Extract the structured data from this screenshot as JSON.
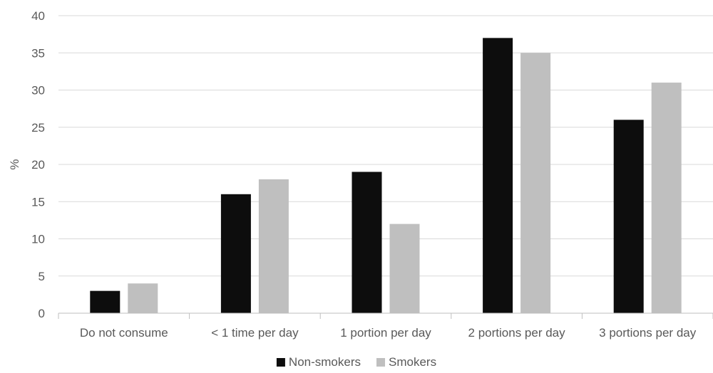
{
  "chart_data": {
    "type": "bar",
    "title": "",
    "xlabel": "",
    "ylabel": "%",
    "ylim": [
      0,
      40
    ],
    "yticks": [
      0,
      5,
      10,
      15,
      20,
      25,
      30,
      35,
      40
    ],
    "grid": true,
    "legend_position": "bottom",
    "categories": [
      "Do not consume",
      "< 1 time per day",
      "1 portion per day",
      "2 portions per day",
      "3 portions per day"
    ],
    "series": [
      {
        "name": "Non-smokers",
        "color": "#0d0d0d",
        "values": [
          3,
          16,
          19,
          37,
          26
        ]
      },
      {
        "name": "Smokers",
        "color": "#bfbfbf",
        "values": [
          4,
          18,
          12,
          35,
          31
        ]
      }
    ]
  }
}
